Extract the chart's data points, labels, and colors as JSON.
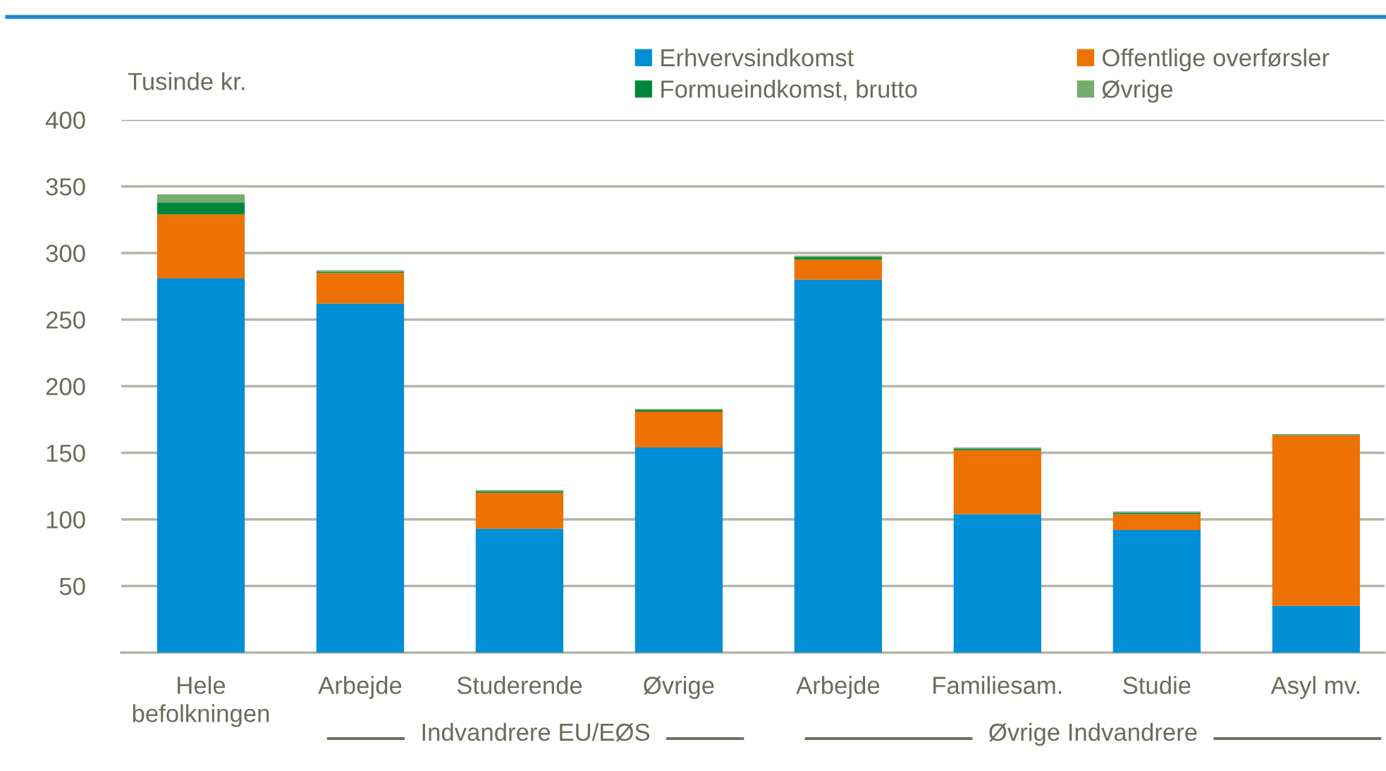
{
  "chart_data": {
    "type": "bar",
    "stacked": true,
    "ylabel": "Tusinde kr.",
    "categories": [
      "Hele\nbefolkningen",
      "Arbejde",
      "Studerende",
      "Øvrige",
      "Arbejde",
      "Familiesam.",
      "Studie",
      "Asyl mv."
    ],
    "series": [
      {
        "name": "Erhvervsindkomst",
        "color": "#008fd5",
        "values": [
          281,
          262,
          93,
          154,
          280,
          104,
          92,
          35
        ]
      },
      {
        "name": "Offentlige overførsler",
        "color": "#ed7203",
        "values": [
          48,
          23,
          27,
          27,
          15,
          48,
          12,
          128
        ]
      },
      {
        "name": "Formueindkomst, brutto",
        "color": "#00873c",
        "values": [
          9,
          1,
          1,
          1,
          2,
          1,
          1,
          0
        ]
      },
      {
        "name": "Øvrige",
        "color": "#76ac70",
        "values": [
          6,
          1,
          1,
          1,
          1,
          1,
          1,
          1
        ]
      }
    ],
    "ylim": [
      0,
      400
    ],
    "yticks": [
      50,
      100,
      150,
      200,
      250,
      300,
      350,
      400
    ],
    "grid": "y",
    "legend": "top right",
    "annotations": [
      "Indvandrere EU/EØS",
      "Øvrige Indvandrere"
    ]
  }
}
